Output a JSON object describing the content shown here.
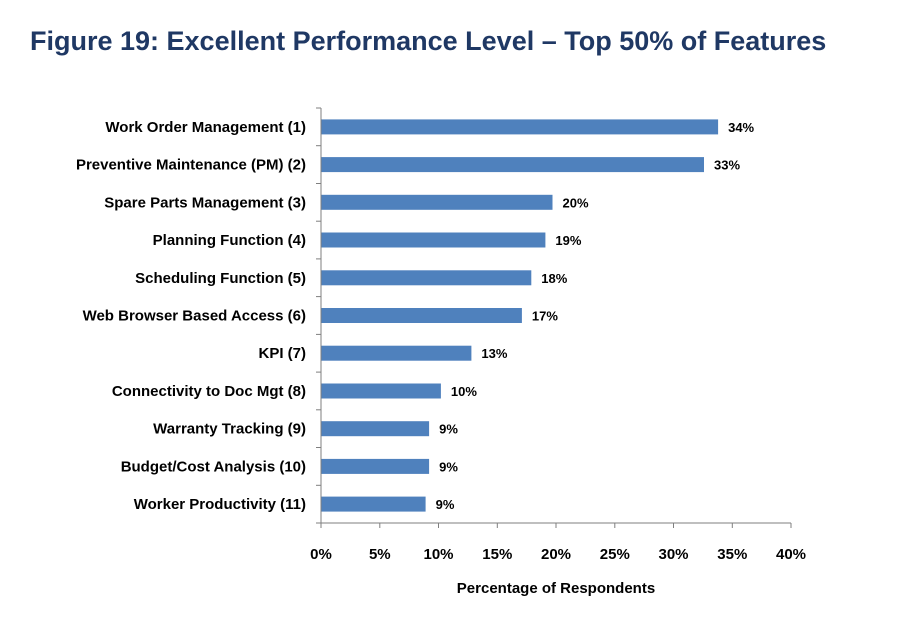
{
  "title": "Figure 19: Excellent Performance Level – Top 50% of Features",
  "colors": {
    "bar": "#4f81bd",
    "title": "#1f3864",
    "axis": "#7f7f7f"
  },
  "chart_data": {
    "type": "bar",
    "orientation": "horizontal",
    "title": "Figure 19: Excellent Performance Level – Top 50% of Features",
    "xlabel": "Percentage of Respondents",
    "ylabel": "",
    "xlim": [
      0,
      40
    ],
    "x_ticks": [
      0,
      5,
      10,
      15,
      20,
      25,
      30,
      35,
      40
    ],
    "x_tick_labels": [
      "0%",
      "5%",
      "10%",
      "15%",
      "20%",
      "25%",
      "30%",
      "35%",
      "40%"
    ],
    "grid": false,
    "legend": "none",
    "categories": [
      "Work Order Management (1)",
      "Preventive Maintenance (PM) (2)",
      "Spare Parts Management (3)",
      "Planning Function (4)",
      "Scheduling Function (5)",
      "Web Browser Based Access (6)",
      "KPI (7)",
      "Connectivity to Doc Mgt (8)",
      "Warranty Tracking (9)",
      "Budget/Cost Analysis (10)",
      "Worker Productivity (11)"
    ],
    "values": [
      33.8,
      32.6,
      19.7,
      19.1,
      17.9,
      17.1,
      12.8,
      10.2,
      9.2,
      9.2,
      8.9
    ],
    "value_labels": [
      "34%",
      "33%",
      "20%",
      "19%",
      "18%",
      "17%",
      "13%",
      "10%",
      "9%",
      "9%",
      "9%"
    ]
  }
}
